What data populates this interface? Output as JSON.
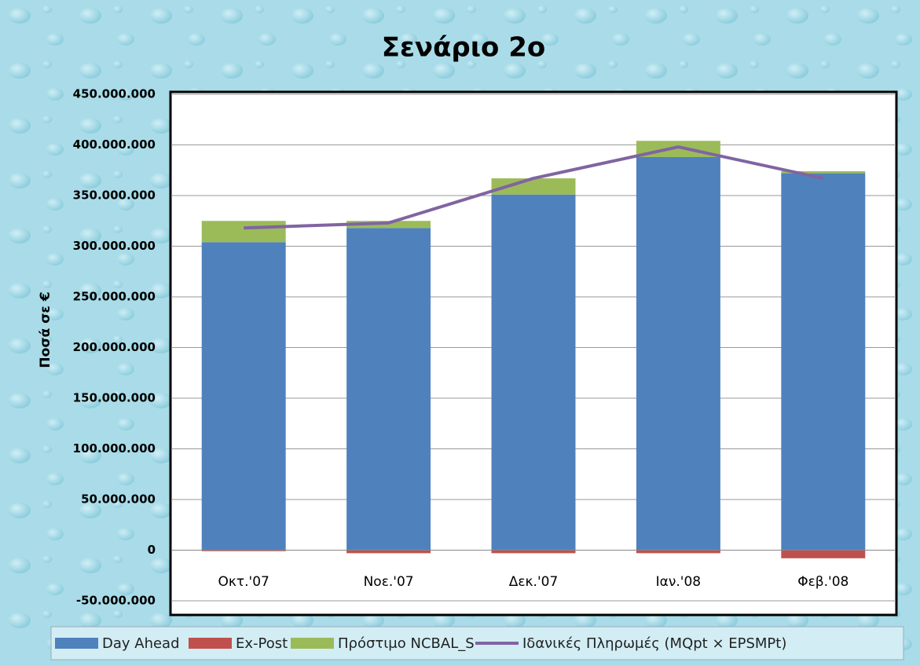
{
  "chart_data": {
    "type": "bar",
    "stacked": true,
    "title": "Σενάριο 2ο",
    "y_label": "Ποσά σε €",
    "categories": [
      "Οκτ.'07",
      "Νοε.'07",
      "Δεκ.'07",
      "Ιαν.'08",
      "Φεβ.'08"
    ],
    "series": [
      {
        "name": "Day Ahead",
        "type": "bar",
        "color": "#4f81bd",
        "values": [
          304000000,
          318000000,
          351000000,
          388000000,
          372000000
        ]
      },
      {
        "name": "Ex-Post",
        "type": "bar",
        "color": "#c0504d",
        "values": [
          -1000000,
          -3000000,
          -3000000,
          -3000000,
          -8000000
        ]
      },
      {
        "name": "Πρόστιμο NCBAL_S",
        "type": "bar",
        "color": "#9bbb59",
        "values": [
          21000000,
          7000000,
          16000000,
          16000000,
          2000000
        ]
      },
      {
        "name": "Ιδανικές Πληρωμές (MQpt × EPSMPt)",
        "type": "line",
        "color": "#8064a2",
        "values": [
          318000000,
          323000000,
          367000000,
          398000000,
          367000000
        ]
      }
    ],
    "ylim": [
      -50000000,
      450000000
    ],
    "yticks": [
      {
        "value": -50000000,
        "label": "-50.000.000"
      },
      0,
      {
        "value": 50000000,
        "label": "50.000.000"
      },
      {
        "value": 100000000,
        "label": "100.000.000"
      },
      {
        "value": 150000000,
        "label": "150.000.000"
      },
      {
        "value": 200000000,
        "label": "200.000.000"
      },
      {
        "value": 250000000,
        "label": "250.000.000"
      },
      {
        "value": 300000000,
        "label": "300.000.000"
      },
      {
        "value": 350000000,
        "label": "350.000.000"
      },
      {
        "value": 400000000,
        "label": "400.000.000"
      },
      {
        "value": 450000000,
        "label": "450.000.000"
      }
    ],
    "grid": true,
    "legend": "bottom"
  }
}
